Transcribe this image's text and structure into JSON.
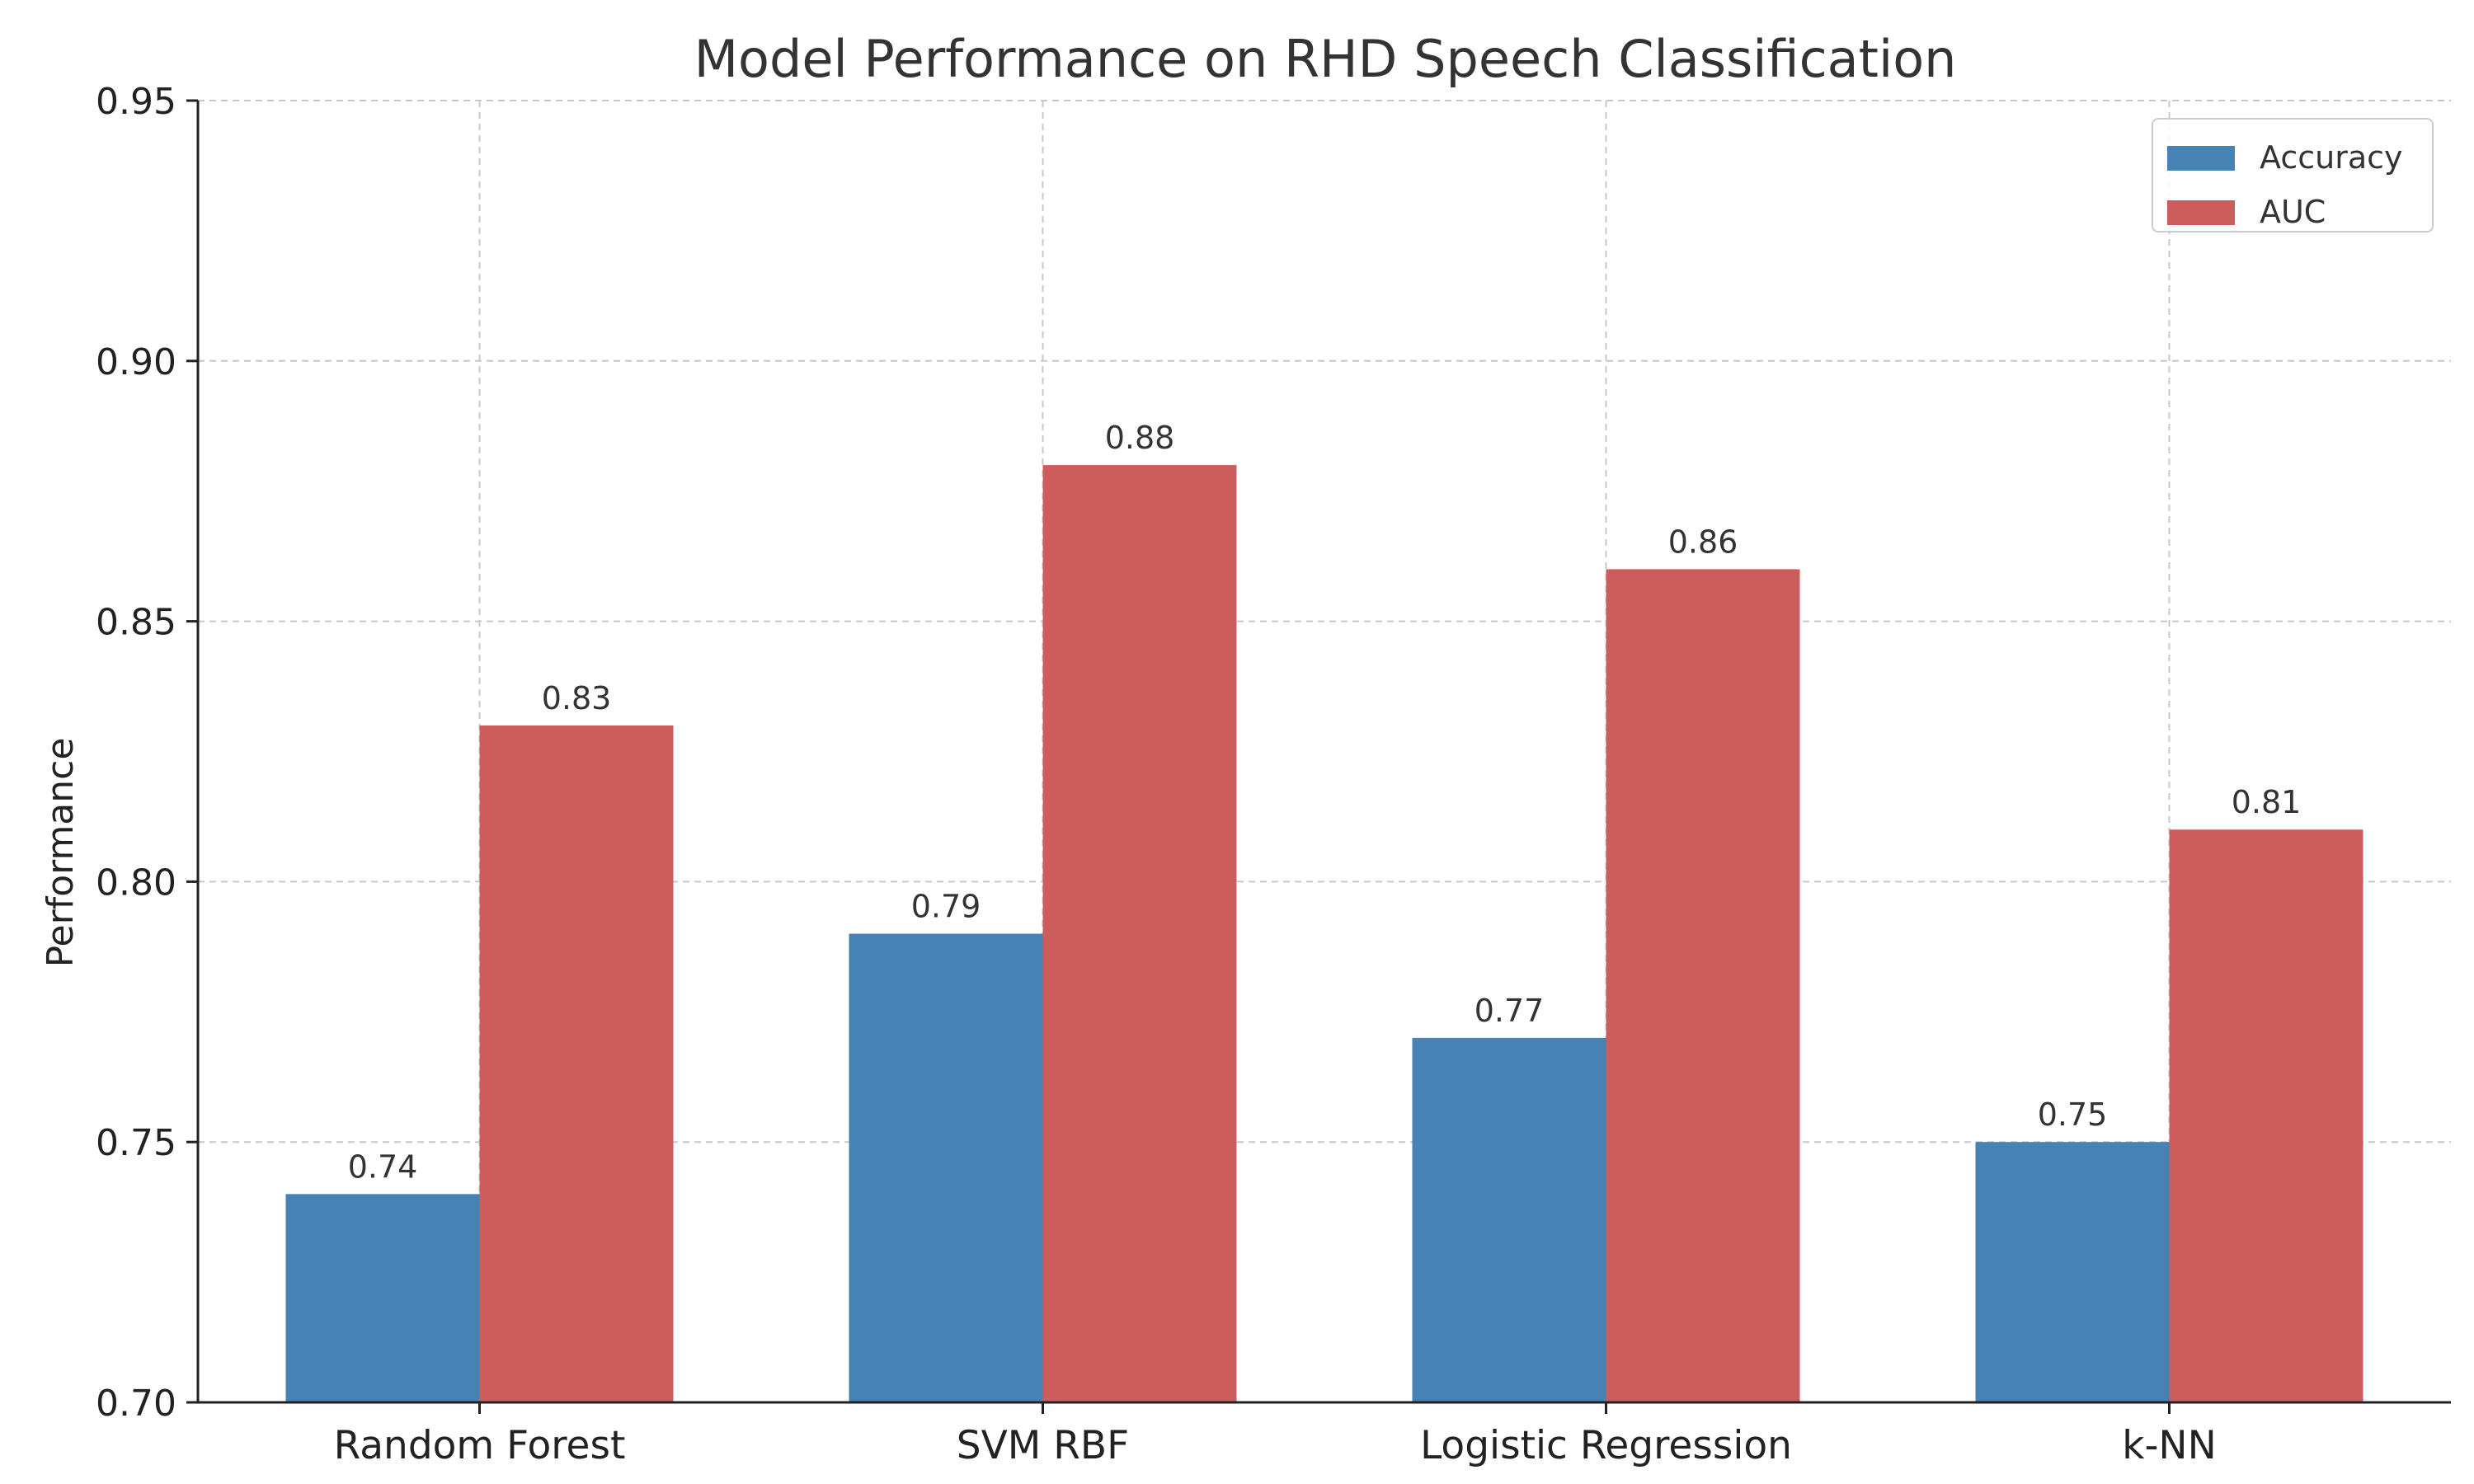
{
  "chart_data": {
    "type": "bar",
    "title": "Model Performance on RHD Speech Classification",
    "xlabel": "",
    "ylabel": "Performance",
    "ylim": [
      0.7,
      0.95
    ],
    "yticks": [
      0.7,
      0.75,
      0.8,
      0.85,
      0.9,
      0.95
    ],
    "ytick_labels": [
      "0.70",
      "0.75",
      "0.80",
      "0.85",
      "0.90",
      "0.95"
    ],
    "categories": [
      "Random Forest",
      "SVM RBF",
      "Logistic Regression",
      "k-NN"
    ],
    "series": [
      {
        "name": "Accuracy",
        "color": "#4682b4",
        "values": [
          0.74,
          0.79,
          0.77,
          0.75
        ],
        "labels": [
          "0.74",
          "0.79",
          "0.77",
          "0.75"
        ]
      },
      {
        "name": "AUC",
        "color": "#cd5c5c",
        "values": [
          0.83,
          0.88,
          0.86,
          0.81
        ],
        "labels": [
          "0.83",
          "0.88",
          "0.86",
          "0.81"
        ]
      }
    ],
    "grid": true,
    "legend_position": "top-right"
  }
}
